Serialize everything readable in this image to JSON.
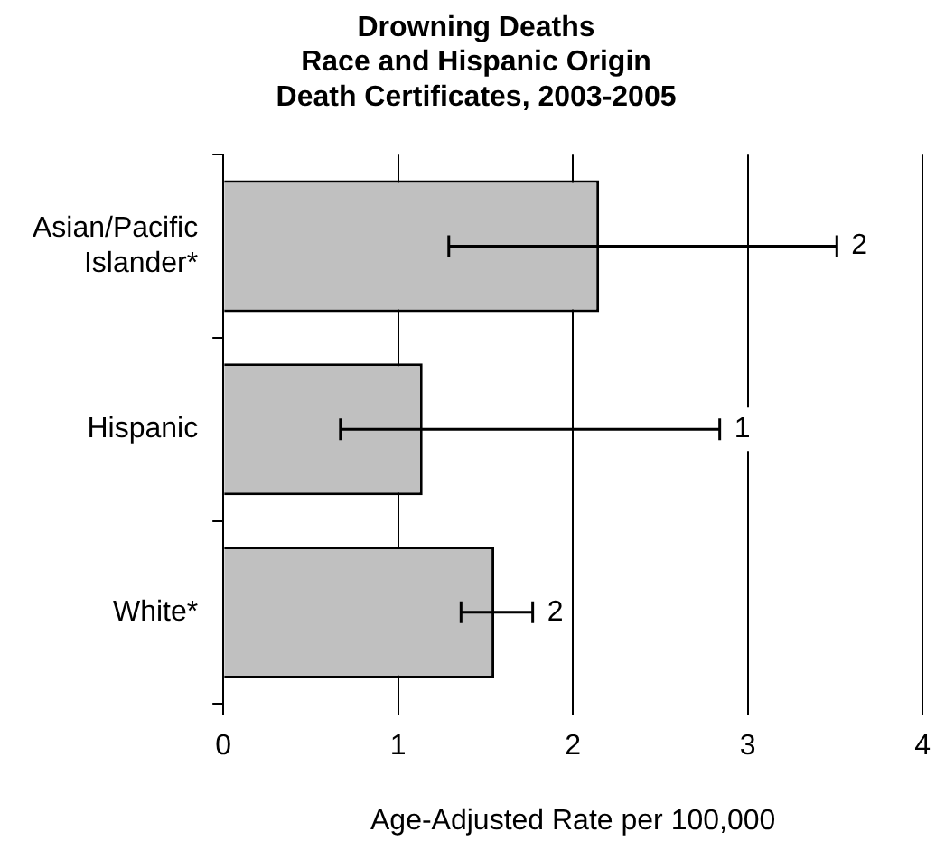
{
  "chart_data": {
    "type": "bar",
    "orientation": "horizontal",
    "title": "Drowning Deaths\nRace and Hispanic Origin\nDeath Certificates, 2003-2005",
    "xlabel": "Age-Adjusted Rate per 100,000",
    "categories": [
      "Asian/Pacific Islander*",
      "Hispanic",
      "White*"
    ],
    "values": [
      2.15,
      1.14,
      1.55
    ],
    "errors": [
      [
        1.29,
        3.51
      ],
      [
        0.67,
        2.84
      ],
      [
        1.36,
        1.77
      ]
    ],
    "annotations": [
      {
        "text": "2",
        "x": 3.51,
        "y": "Asian/Pacific Islander*"
      },
      {
        "text": "1",
        "x": 2.84,
        "y": "Hispanic"
      },
      {
        "text": "2",
        "x": 1.77,
        "y": "White*"
      }
    ],
    "color": "#c0c0c0",
    "xlim": [
      0,
      4
    ],
    "xticks": [
      0,
      1,
      2,
      3,
      4
    ],
    "grid": "x",
    "legend": false
  }
}
